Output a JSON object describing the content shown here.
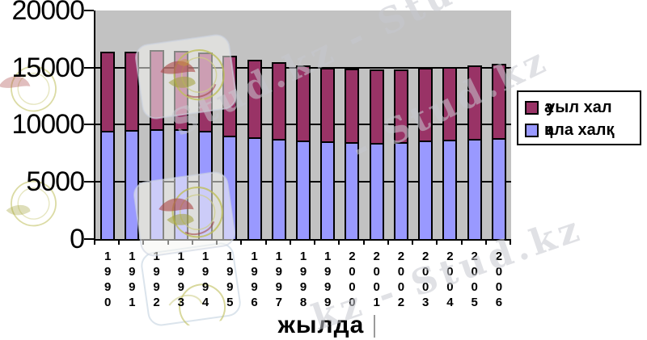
{
  "watermark": {
    "top": "Stud.kz - Stud.kz",
    "mid": "- Stud.kz",
    "bottom": "kz - Stud.kz",
    "brand": "Stud.kz"
  },
  "colors": {
    "plot_background": "#c2c2c2",
    "rural_series": "#993366",
    "urban_series": "#9999ff",
    "axis": "#000000",
    "legend_background": "#ffffff",
    "watermark_text": "#c6c8d0"
  },
  "legend": {
    "items": [
      {
        "label": "ауыл хал",
        "color": "#993366"
      },
      {
        "label": "қала халқ",
        "color": "#9999ff"
      }
    ]
  },
  "chart_data": {
    "type": "bar",
    "stacked": true,
    "title": "",
    "xlabel": "жылда",
    "ylabel": "",
    "ylim": [
      0,
      20000
    ],
    "yticks": [
      0,
      5000,
      10000,
      15000,
      20000
    ],
    "grid": true,
    "legend_position": "right",
    "categories": [
      "1990",
      "1991",
      "1992",
      "1993",
      "1994",
      "1995",
      "1996",
      "1997",
      "1998",
      "1999",
      "2000",
      "2001",
      "2002",
      "2003",
      "2004",
      "2005",
      "2006"
    ],
    "series": [
      {
        "name": "қала халқ",
        "color": "#9999ff",
        "values": [
          9300,
          9400,
          9450,
          9450,
          9300,
          8900,
          8750,
          8600,
          8500,
          8400,
          8350,
          8300,
          8350,
          8450,
          8550,
          8650,
          8700
        ]
      },
      {
        "name": "ауыл хал",
        "color": "#993366",
        "values": [
          7100,
          7000,
          7050,
          7000,
          7000,
          7150,
          6950,
          6850,
          6700,
          6600,
          6550,
          6570,
          6500,
          6500,
          6500,
          6600,
          6650
        ]
      }
    ]
  }
}
